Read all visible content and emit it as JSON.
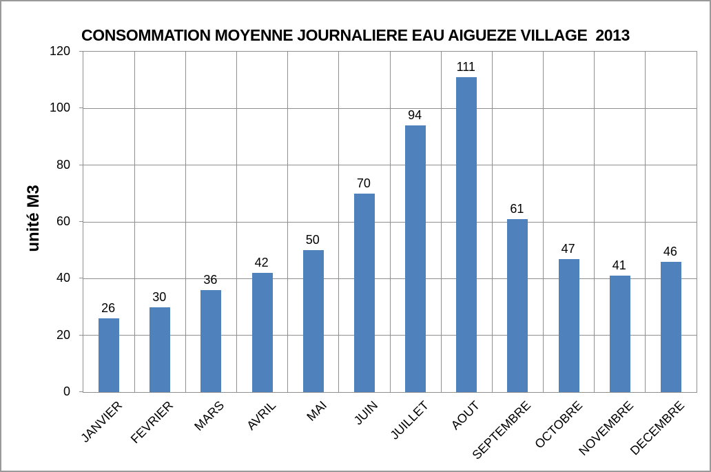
{
  "window": {
    "background": "#ffffff",
    "frame_border_color": "#9a9a9a"
  },
  "chart_data": {
    "type": "bar",
    "title": "CONSOMMATION MOYENNE JOURNALIERE EAU AIGUEZE VILLAGE  2013",
    "ylabel": "unité M3",
    "xlabel": "",
    "categories": [
      "JANVIER",
      "FEVRIER",
      "MARS",
      "AVRIL",
      "MAI",
      "JUIN",
      "JUILLET",
      "AOUT",
      "SEPTEMBRE",
      "OCTOBRE",
      "NOVEMBRE",
      "DECEMBRE"
    ],
    "values": [
      26,
      30,
      36,
      42,
      50,
      70,
      94,
      111,
      61,
      47,
      41,
      46
    ],
    "data_labels_visible": true,
    "ylim": [
      0,
      120
    ],
    "yticks": [
      0,
      20,
      40,
      60,
      80,
      100,
      120
    ],
    "grid": {
      "horizontal": true,
      "vertical": true,
      "color": "#8e8e8e"
    },
    "legend_position": "none",
    "bar_color": "#4f81bd",
    "text_color": "#000000",
    "x_label_rotation_deg": 45
  }
}
